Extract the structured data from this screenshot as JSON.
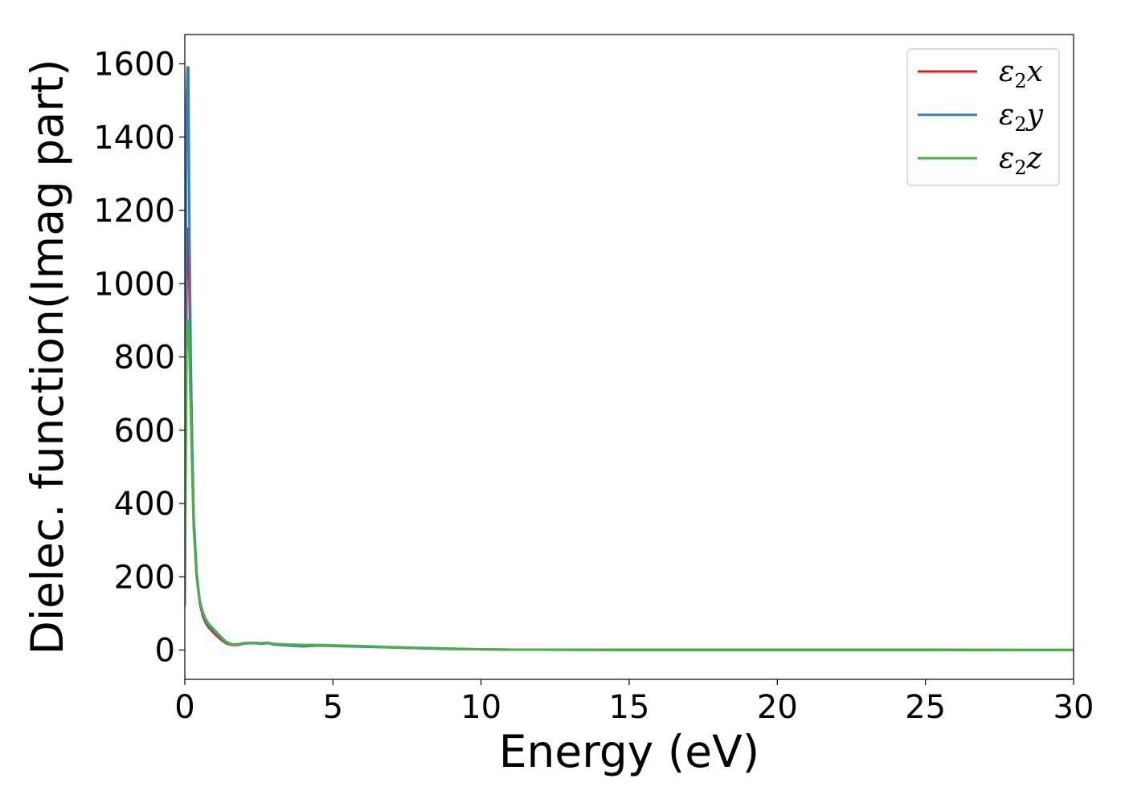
{
  "chart_data": {
    "type": "line",
    "title": "",
    "xlabel": "Energy (eV)",
    "ylabel": "Dielec. function(Imag part)",
    "xlim": [
      0,
      30
    ],
    "ylim": [
      -80,
      1680
    ],
    "xticks": [
      0,
      5,
      10,
      15,
      20,
      25,
      30
    ],
    "yticks": [
      0,
      200,
      400,
      600,
      800,
      1000,
      1200,
      1400,
      1600
    ],
    "grid": false,
    "legend_position": "top-right",
    "series": [
      {
        "name": "ε2x",
        "legend_base": "ε",
        "legend_sub": "2",
        "legend_suffix": "x",
        "color": "#e41a1c",
        "x": [
          0,
          0.03,
          0.06,
          0.09,
          0.12,
          0.15,
          0.2,
          0.25,
          0.3,
          0.4,
          0.5,
          0.6,
          0.7,
          0.8,
          1.0,
          1.2,
          1.4,
          1.6,
          1.8,
          2.0,
          2.3,
          2.6,
          2.8,
          3.0,
          3.5,
          4.0,
          4.5,
          5.0,
          6.0,
          7.0,
          8.0,
          9.0,
          10.0,
          11.0,
          12.0,
          15.0,
          20.0,
          25.0,
          30.0
        ],
        "y": [
          150,
          600,
          1000,
          1150,
          1150,
          1000,
          750,
          520,
          350,
          200,
          130,
          95,
          75,
          62,
          45,
          30,
          18,
          14,
          14,
          18,
          20,
          18,
          20,
          16,
          14,
          12,
          13,
          12,
          10,
          7,
          5,
          3,
          2,
          1,
          1,
          0.5,
          0.5,
          0.5,
          0.3
        ]
      },
      {
        "name": "ε2y",
        "legend_base": "ε",
        "legend_sub": "2",
        "legend_suffix": "y",
        "color": "#377eb8",
        "x": [
          0,
          0.03,
          0.06,
          0.09,
          0.12,
          0.15,
          0.2,
          0.25,
          0.3,
          0.4,
          0.5,
          0.6,
          0.7,
          0.8,
          1.0,
          1.2,
          1.4,
          1.6,
          1.8,
          2.0,
          2.3,
          2.6,
          2.8,
          3.0,
          3.5,
          4.0,
          4.5,
          5.0,
          6.0,
          7.0,
          8.0,
          9.0,
          10.0,
          11.0,
          12.0,
          15.0,
          20.0,
          25.0,
          30.0
        ],
        "y": [
          200,
          900,
          1500,
          1590,
          1590,
          1200,
          800,
          550,
          360,
          210,
          135,
          100,
          80,
          66,
          50,
          35,
          20,
          15,
          15,
          18,
          19,
          17,
          19,
          15,
          12,
          10,
          12,
          11,
          9,
          7,
          5,
          3,
          2,
          1,
          1,
          0.5,
          0.5,
          0.5,
          0.3
        ]
      },
      {
        "name": "ε2z",
        "legend_base": "ε",
        "legend_sub": "2",
        "legend_suffix": "z",
        "color": "#4daf4a",
        "x": [
          0,
          0.03,
          0.06,
          0.09,
          0.12,
          0.15,
          0.2,
          0.25,
          0.3,
          0.4,
          0.5,
          0.6,
          0.7,
          0.8,
          1.0,
          1.2,
          1.4,
          1.6,
          1.8,
          2.0,
          2.3,
          2.6,
          2.8,
          3.0,
          3.5,
          4.0,
          4.5,
          5.0,
          6.0,
          7.0,
          8.0,
          9.0,
          10.0,
          11.0,
          12.0,
          15.0,
          20.0,
          25.0,
          30.0
        ],
        "y": [
          120,
          500,
          820,
          900,
          900,
          820,
          650,
          480,
          330,
          200,
          135,
          105,
          85,
          72,
          55,
          38,
          22,
          16,
          16,
          19,
          20,
          19,
          20,
          17,
          15,
          14,
          14,
          13,
          11,
          8,
          6,
          4,
          2,
          1,
          1,
          0.5,
          0.5,
          0.5,
          0.3
        ]
      }
    ]
  }
}
